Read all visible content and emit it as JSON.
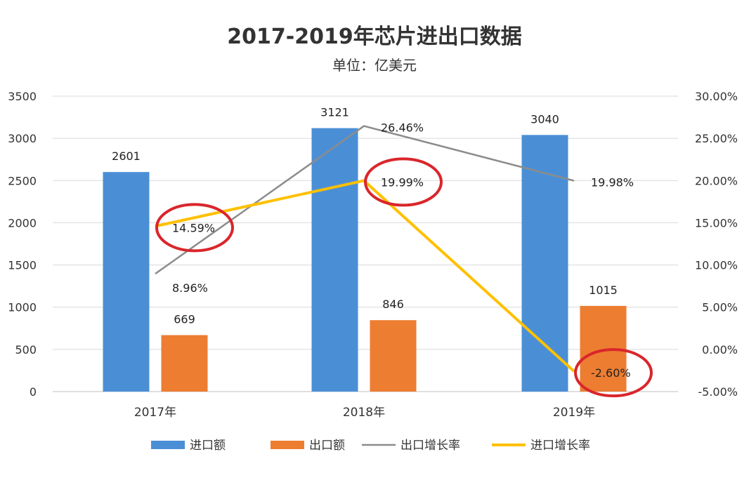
{
  "chart_data": {
    "type": "bar",
    "title": "2017-2019年芯片进出口数据",
    "subtitle": "单位：亿美元",
    "categories": [
      "2017年",
      "2018年",
      "2019年"
    ],
    "y_left": {
      "range": [
        0,
        3500
      ],
      "ticks": [
        "0",
        "500",
        "1000",
        "1500",
        "2000",
        "2500",
        "3000",
        "3500"
      ]
    },
    "y_right": {
      "range": [
        -5,
        30
      ],
      "ticks": [
        "-5.00%",
        "0.00%",
        "5.00%",
        "10.00%",
        "15.00%",
        "20.00%",
        "25.00%",
        "30.00%"
      ]
    },
    "grid": true,
    "legend_position": "bottom",
    "series": [
      {
        "name": "进口额",
        "kind": "bar",
        "axis": "left",
        "color": "#4A8FD6",
        "values": [
          2601,
          3121,
          3040
        ],
        "labels": [
          "2601",
          "3121",
          "3040"
        ]
      },
      {
        "name": "出口额",
        "kind": "bar",
        "axis": "left",
        "color": "#ED7D31",
        "values": [
          669,
          846,
          1015
        ],
        "labels": [
          "669",
          "846",
          "1015"
        ]
      },
      {
        "name": "出口增长率",
        "kind": "line",
        "axis": "right",
        "color": "#8C8C8C",
        "values": [
          8.96,
          26.46,
          19.98
        ],
        "labels": [
          "8.96%",
          "26.46%",
          "19.98%"
        ]
      },
      {
        "name": "进口增长率",
        "kind": "line",
        "axis": "right",
        "color": "#FFC000",
        "values": [
          14.59,
          19.99,
          -2.6
        ],
        "labels": [
          "14.59%",
          "19.99%",
          "-2.60%"
        ]
      }
    ],
    "highlight_color": "#D9262B",
    "highlighted_labels": [
      "14.59%",
      "19.99%",
      "-2.60%"
    ]
  }
}
